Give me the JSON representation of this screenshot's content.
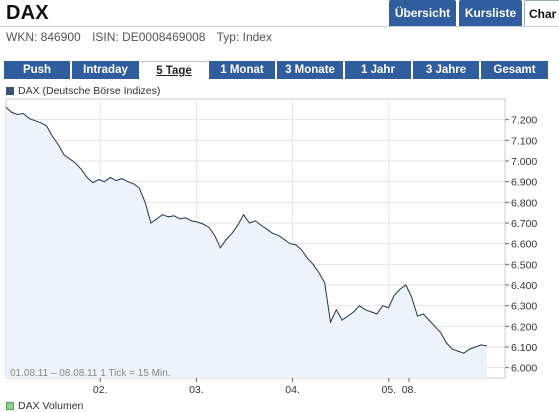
{
  "header": {
    "title": "DAX",
    "tabs": [
      {
        "label": "Übersicht",
        "active": false
      },
      {
        "label": "Kursliste",
        "active": false
      },
      {
        "label": "Char",
        "active": true
      }
    ],
    "meta": {
      "wkn": "WKN: 846900",
      "isin": "ISIN: DE0008469008",
      "type": "Typ: Index"
    }
  },
  "period_tabs": [
    {
      "label": "Push",
      "active": false
    },
    {
      "label": "Intraday",
      "active": false
    },
    {
      "label": "5 Tage",
      "active": true
    },
    {
      "label": "1 Monat",
      "active": false
    },
    {
      "label": "3 Monate",
      "active": false
    },
    {
      "label": "1 Jahr",
      "active": false
    },
    {
      "label": "3 Jahre",
      "active": false
    },
    {
      "label": "Gesamt",
      "active": false
    }
  ],
  "chart_data": {
    "type": "area",
    "legend": "DAX (Deutsche Börse Indizes)",
    "legend_color": "#3b5570",
    "line_color": "#1f3550",
    "fill_color": "#eef2fb",
    "info": "01.08.11 – 08.08.11   1 Tick = 15 Min.",
    "ylim": [
      5950,
      7300
    ],
    "y_ticks": [
      "7.200",
      "7.100",
      "7.000",
      "6.900",
      "6.800",
      "6.700",
      "6.600",
      "6.500",
      "6.400",
      "6.300",
      "6.200",
      "6.100",
      "6.000"
    ],
    "y_tick_values": [
      7200,
      7100,
      7000,
      6900,
      6800,
      6700,
      6600,
      6500,
      6400,
      6300,
      6200,
      6100,
      6000
    ],
    "x_ticks": [
      "02.",
      "03.",
      "04.",
      "05.",
      "08."
    ],
    "grid": true,
    "series": [
      {
        "values": [
          7260,
          7235,
          7225,
          7230,
          7205,
          7195,
          7185,
          7170,
          7120,
          7080,
          7030,
          7010,
          6990,
          6960,
          6920,
          6895,
          6910,
          6900,
          6920,
          6905,
          6915,
          6900,
          6890,
          6870,
          6800,
          6700,
          6720,
          6740,
          6730,
          6735,
          6720,
          6725,
          6710,
          6705,
          6695,
          6680,
          6640,
          6580,
          6620,
          6650,
          6690,
          6740,
          6700,
          6710,
          6690,
          6670,
          6650,
          6640,
          6620,
          6600,
          6595,
          6570,
          6530,
          6500,
          6460,
          6410,
          6220,
          6280,
          6230,
          6250,
          6270,
          6300,
          6280,
          6270,
          6260,
          6300,
          6290,
          6350,
          6380,
          6400,
          6340,
          6250,
          6260,
          6230,
          6200,
          6170,
          6120,
          6090,
          6080,
          6070,
          6090,
          6100,
          6110,
          6105
        ]
      }
    ],
    "volume_legend": "DAX Volumen",
    "volume_legend_color": "#8fd08f"
  }
}
